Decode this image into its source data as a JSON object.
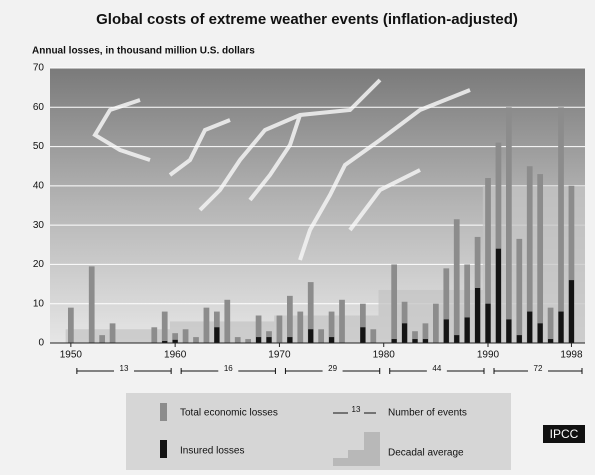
{
  "chart_data": {
    "type": "bar",
    "title": "Global costs of extreme weather events (inflation-adjusted)",
    "subtitle": "Annual losses, in thousand million U.S. dollars",
    "x": [
      1950,
      1952,
      1953,
      1954,
      1958,
      1959,
      1960,
      1961,
      1962,
      1963,
      1964,
      1965,
      1966,
      1967,
      1968,
      1969,
      1970,
      1971,
      1972,
      1973,
      1974,
      1975,
      1976,
      1978,
      1979,
      1981,
      1982,
      1983,
      1984,
      1985,
      1986,
      1987,
      1988,
      1989,
      1990,
      1991,
      1992,
      1993,
      1994,
      1995,
      1996,
      1997,
      1998
    ],
    "series": [
      {
        "name": "Total economic losses",
        "color": "#8c8c8c",
        "values": [
          9,
          19.5,
          2,
          5,
          4,
          8,
          2.5,
          3.5,
          1.5,
          9,
          8,
          11,
          1.5,
          1,
          7,
          3,
          7,
          12,
          8,
          15.5,
          3.5,
          8,
          11,
          10,
          3.5,
          20,
          10.5,
          3,
          5,
          10,
          19,
          31.5,
          20,
          27,
          42,
          51,
          60,
          26.5,
          45,
          43,
          9,
          60,
          40
        ]
      },
      {
        "name": "Insured losses",
        "color": "#141414",
        "values": [
          null,
          null,
          null,
          null,
          null,
          0.5,
          0.8,
          null,
          null,
          null,
          4,
          null,
          null,
          null,
          1.5,
          1.5,
          null,
          1.5,
          null,
          3.5,
          null,
          1.5,
          null,
          4,
          null,
          1,
          5,
          1,
          1,
          null,
          6,
          2,
          6.5,
          14,
          10,
          24,
          6,
          2,
          8,
          5,
          1,
          8,
          16
        ]
      }
    ],
    "decadal_average": {
      "name": "Decadal average",
      "color": "#c4c4c4",
      "x": [
        1950,
        1960,
        1970,
        1980,
        1990
      ],
      "values": [
        3.5,
        5.5,
        7,
        13.5,
        40
      ]
    },
    "number_of_events": {
      "name": "Number of events",
      "legend_sample": "13",
      "x": [
        1950,
        1960,
        1970,
        1980,
        1990
      ],
      "values": [
        13,
        16,
        29,
        44,
        72
      ]
    },
    "xlim": [
      1948,
      1999.3
    ],
    "xticks": [
      1950,
      1960,
      1970,
      1980,
      1990,
      1998
    ],
    "ylim": [
      0,
      70
    ],
    "yticks": [
      0,
      10,
      20,
      30,
      40,
      50,
      60,
      70
    ],
    "grid": true,
    "source": "IPCC"
  }
}
